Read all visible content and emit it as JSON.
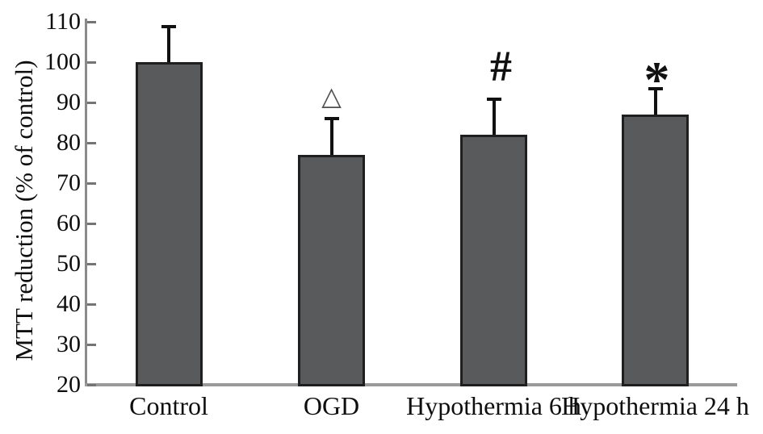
{
  "figure": {
    "background": "#ffffff"
  },
  "chart_data": {
    "type": "bar",
    "title": "",
    "xlabel": "",
    "ylabel": "MTT reduction (% of control)",
    "categories": [
      "Control",
      "OGD",
      "Hypothermia 6 h",
      "Hypothermia 24 h"
    ],
    "values": [
      100,
      77,
      82,
      87
    ],
    "errors": [
      8.8,
      9,
      8.8,
      6.4
    ],
    "annotations": [
      {
        "category": "OGD",
        "symbol": "△"
      },
      {
        "category": "Hypothermia 6 h",
        "symbol": "#"
      },
      {
        "category": "Hypothermia 24 h",
        "symbol": "*"
      }
    ],
    "ylim": [
      20,
      110
    ],
    "ytick_step": 10,
    "yticks": [
      20,
      30,
      40,
      50,
      60,
      70,
      80,
      90,
      100,
      110
    ],
    "grid": false,
    "legend": null,
    "colors": {
      "bar_fill": "#595a5b",
      "bar_border": "#1f1f1f",
      "error_bar": "#111111",
      "axis_line": "#8a8a8a",
      "baseline": "#9a9a9a",
      "tick_mark": "#747474",
      "triangle_annotation": "#4f4f4f",
      "text": "#0e0e0e"
    }
  }
}
